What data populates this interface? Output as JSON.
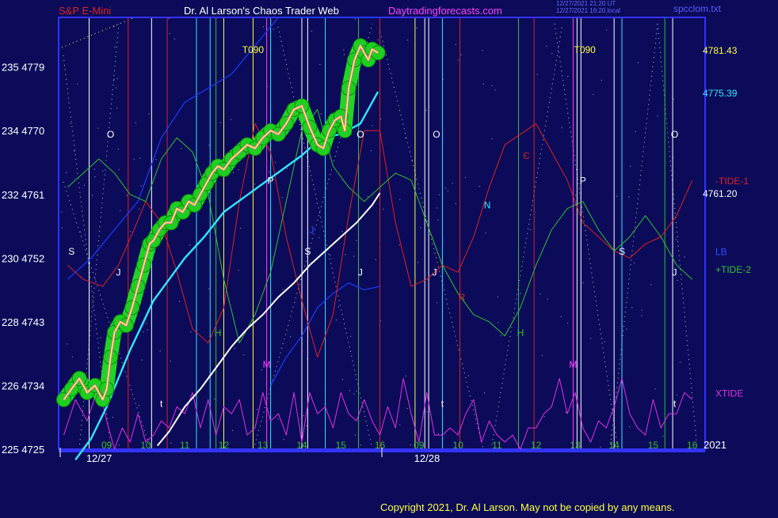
{
  "header": {
    "symbol": "S&P E-Mini",
    "title": "Dr. Al Larson's Chaos Trader Web",
    "site": "Daytradingforecasts.com",
    "stamp_line1": "12/27/2021 21:20 UT",
    "stamp_line2": "12/27/2021 16:20 local",
    "file": "spcclom.txt"
  },
  "copyright": "Copyright 2021, Dr. Al Larson. May not be copied by any means.",
  "colors": {
    "background": "#0b0b5a",
    "frame": "#3333ff",
    "price_glow": "#22e022",
    "price_line": "#ffff30",
    "price_bars": "#ff40ff",
    "cyan_avg": "#30e8ff",
    "white_avg": "#ffffff",
    "blue_line": "#1c3cff",
    "tide1": "#e02020",
    "tide2": "#30c030",
    "xtide": "#e030e0"
  },
  "chart_data": {
    "type": "line",
    "title": "S&P E-Mini",
    "x_unit": "hour",
    "ylim": [
      4725,
      4786
    ],
    "y_tick_labels": [
      {
        "value": 4779,
        "text": "235 4779"
      },
      {
        "value": 4770,
        "text": "234 4770"
      },
      {
        "value": 4761,
        "text": "232 4761"
      },
      {
        "value": 4752,
        "text": "230 4752"
      },
      {
        "value": 4743,
        "text": "228 4743"
      },
      {
        "value": 4734,
        "text": "226 4734"
      },
      {
        "value": 4725,
        "text": "225 4725"
      }
    ],
    "hour_labels": [
      {
        "hour": 9,
        "text": "09"
      },
      {
        "hour": 10,
        "text": "10"
      },
      {
        "hour": 11,
        "text": "11"
      },
      {
        "hour": 12,
        "text": "12"
      },
      {
        "hour": 13,
        "text": "13"
      },
      {
        "hour": 14,
        "text": "14"
      },
      {
        "hour": 15,
        "text": "15"
      },
      {
        "hour": 16,
        "text": "16"
      },
      {
        "hour": 17,
        "text": "09"
      },
      {
        "hour": 18,
        "text": "10"
      },
      {
        "hour": 19,
        "text": "11"
      },
      {
        "hour": 20,
        "text": "12"
      },
      {
        "hour": 21,
        "text": "13"
      },
      {
        "hour": 22,
        "text": "14"
      },
      {
        "hour": 23,
        "text": "15"
      },
      {
        "hour": 24,
        "text": "16"
      }
    ],
    "date_labels": [
      {
        "hour": 8.4,
        "text": "12/27"
      },
      {
        "hour": 16.8,
        "text": "12/28"
      }
    ],
    "year_label": "2021",
    "right_labels": [
      {
        "value": 4781.43,
        "text": "4781.43",
        "color": "#ffff40"
      },
      {
        "value": 4775.39,
        "text": "4775.39",
        "color": "#30e8ff"
      },
      {
        "value": 4761.2,
        "text": "4761.20",
        "color": "#ffffff"
      }
    ],
    "series_labels": [
      {
        "text": "-TIDE-1",
        "color": "#e02020",
        "value": 4763
      },
      {
        "text": "LB",
        "color": "#3050ff",
        "value": 4753
      },
      {
        "text": "+TIDE-2",
        "color": "#30c030",
        "value": 4750.5
      },
      {
        "text": "XTIDE",
        "color": "#e030e0",
        "value": 4733
      }
    ],
    "series": [
      {
        "role": "price",
        "color": "#ffff30",
        "x": [
          7.9,
          8.1,
          8.3,
          8.5,
          8.7,
          8.9,
          9.0,
          9.1,
          9.2,
          9.35,
          9.5,
          9.65,
          9.8,
          9.95,
          10.1,
          10.2,
          10.35,
          10.5,
          10.65,
          10.8,
          10.95,
          11.1,
          11.25,
          11.4,
          11.55,
          11.7,
          11.85,
          12.0,
          12.2,
          12.4,
          12.6,
          12.8,
          13.0,
          13.2,
          13.4,
          13.6,
          13.8,
          14.0,
          14.2,
          14.4,
          14.55,
          14.7,
          14.85,
          15.0,
          15.1,
          15.2,
          15.35,
          15.5,
          15.6,
          15.7,
          15.8,
          15.95
        ],
        "y": [
          4732,
          4733.5,
          4735,
          4733,
          4734,
          4732,
          4733.5,
          4738,
          4741.5,
          4743,
          4742.5,
          4745,
          4748,
          4751,
          4754,
          4754.5,
          4756,
          4757,
          4757,
          4759,
          4758.5,
          4760,
          4759.5,
          4761,
          4762.5,
          4764,
          4765,
          4764.5,
          4766,
          4767,
          4768,
          4767.5,
          4769,
          4770,
          4769.5,
          4771,
          4773,
          4773.5,
          4770.5,
          4768,
          4767.5,
          4770,
          4771.5,
          4772,
          4770,
          4776,
          4780,
          4782,
          4781,
          4780,
          4781.5,
          4781
        ]
      },
      {
        "role": "cyan-average",
        "color": "#30e8ff",
        "x": [
          8.2,
          8.6,
          9.0,
          9.3,
          9.6,
          9.9,
          10.2,
          10.6,
          11.0,
          11.5,
          12.0,
          12.5,
          13.0,
          13.5,
          14.0,
          14.5,
          15.0,
          15.5,
          15.95
        ],
        "y": [
          4723.5,
          4726.5,
          4731,
          4735,
          4739,
          4742.5,
          4746,
          4749,
          4752,
          4755,
          4758.5,
          4760.5,
          4762.5,
          4764.5,
          4766.5,
          4769,
          4769.5,
          4771,
          4775.5
        ]
      },
      {
        "role": "white-average",
        "color": "#ffffff",
        "x": [
          10.3,
          10.6,
          11.0,
          11.4,
          11.8,
          12.2,
          12.6,
          13.0,
          13.4,
          13.8,
          14.2,
          14.6,
          15.0,
          15.4,
          15.8,
          16.0
        ],
        "y": [
          4725.5,
          4727.5,
          4731,
          4733.5,
          4736.5,
          4739.5,
          4742,
          4744,
          4746.5,
          4748.5,
          4751,
          4753,
          4755,
          4757,
          4759.5,
          4761.2
        ]
      },
      {
        "role": "blue-line",
        "color": "#1c3cff",
        "x": [
          8.0,
          8.6,
          9.2,
          9.8,
          10.4,
          11.0,
          11.6,
          12.2,
          12.8,
          13.4,
          14.0,
          14.6,
          15.2,
          15.8,
          16.0
        ],
        "y": [
          4749,
          4752,
          4756,
          4760,
          4769,
          4774,
          4776,
          4778,
          4782,
          4786,
          4786,
          4786,
          4786,
          4786,
          4786
        ]
      },
      {
        "role": "blue-line-lower",
        "color": "#1c3cff",
        "x": [
          13.2,
          13.6,
          14.0,
          14.4,
          14.8,
          15.2,
          15.6,
          16.0
        ],
        "y": [
          4734,
          4738,
          4741,
          4745,
          4747,
          4748.5,
          4747.5,
          4748
        ]
      },
      {
        "role": "tide-1",
        "color": "#e02020",
        "x": [
          8.0,
          8.4,
          8.9,
          9.3,
          9.7,
          10.0,
          10.4,
          10.8,
          11.2,
          11.6,
          12.0,
          12.4,
          12.8,
          13.2,
          13.6,
          14.0,
          14.4,
          14.8,
          15.2,
          15.6,
          16.0,
          16.4,
          16.8,
          17.2,
          17.6,
          18.0,
          18.4,
          18.8,
          19.2,
          19.6,
          20.0,
          20.4,
          20.8,
          21.2,
          21.6,
          22.0,
          22.4,
          22.8,
          23.2,
          23.6,
          24.0
        ],
        "y": [
          4751,
          4749,
          4748,
          4751,
          4756,
          4760,
          4757,
          4750,
          4742,
          4740,
          4745,
          4760,
          4771,
          4767,
          4755,
          4746,
          4738,
          4744,
          4758,
          4770,
          4770,
          4757,
          4748,
          4749,
          4751,
          4750,
          4755,
          4762,
          4768,
          4769.5,
          4771,
          4767,
          4763,
          4757,
          4755,
          4753,
          4752,
          4754,
          4755,
          4758,
          4763
        ]
      },
      {
        "role": "tide-2",
        "color": "#30c030",
        "x": [
          8.0,
          8.4,
          8.8,
          9.2,
          9.6,
          10.0,
          10.4,
          10.8,
          11.2,
          11.6,
          12.0,
          12.4,
          12.8,
          13.2,
          13.6,
          14.0,
          14.4,
          14.8,
          15.2,
          15.6,
          16.0,
          16.4,
          16.8,
          17.2,
          17.6,
          18.0,
          18.4,
          18.8,
          19.2,
          19.6,
          20.0,
          20.4,
          20.8,
          21.2,
          21.6,
          22.0,
          22.4,
          22.8,
          23.2,
          23.6,
          24.0
        ],
        "y": [
          4762,
          4764,
          4766,
          4764,
          4761,
          4760,
          4766,
          4769,
          4767,
          4761,
          4749,
          4740,
          4744,
          4750,
          4760,
          4770,
          4773,
          4765,
          4762,
          4760,
          4762,
          4764,
          4763,
          4757,
          4751,
          4747,
          4744,
          4743,
          4741,
          4745,
          4751,
          4756,
          4759,
          4760,
          4756,
          4753,
          4755,
          4758,
          4755,
          4751,
          4749
        ]
      },
      {
        "role": "xtide",
        "color": "#e030e0",
        "x": [
          7.9,
          8.2,
          8.5,
          8.8,
          9.0,
          9.2,
          9.4,
          9.6,
          9.8,
          10.0,
          10.2,
          10.4,
          10.6,
          10.8,
          11.0,
          11.2,
          11.4,
          11.6,
          11.8,
          12.0,
          12.2,
          12.4,
          12.6,
          12.8,
          13.0,
          13.2,
          13.4,
          13.6,
          13.8,
          14.0,
          14.2,
          14.4,
          14.6,
          14.8,
          15.0,
          15.2,
          15.4,
          15.6,
          15.8,
          16.0,
          16.2,
          16.4,
          16.6,
          16.8,
          17.0,
          17.2,
          17.4,
          17.6,
          17.8,
          18.0,
          18.2,
          18.4,
          18.6,
          18.8,
          19.0,
          19.2,
          19.4,
          19.6,
          19.8,
          20.0,
          20.2,
          20.4,
          20.6,
          20.8,
          21.0,
          21.2,
          21.4,
          21.6,
          21.8,
          22.0,
          22.2,
          22.4,
          22.6,
          22.8,
          23.0,
          23.2,
          23.4,
          23.6,
          23.8,
          24.0
        ],
        "y": [
          4727,
          4732,
          4729,
          4734,
          4729,
          4725,
          4728,
          4726,
          4730,
          4726,
          4727,
          4729,
          4728,
          4731,
          4730,
          4733,
          4728,
          4732,
          4727,
          4731,
          4730,
          4732,
          4727,
          4728,
          4733,
          4729,
          4730,
          4727,
          4733,
          4726,
          4733,
          4730,
          4731,
          4728,
          4733,
          4730,
          4729,
          4732,
          4729,
          4727,
          4731,
          4728,
          4735,
          4730,
          4726,
          4733,
          4727,
          4727,
          4728,
          4727,
          4730,
          4732,
          4726,
          4729,
          4727,
          4726,
          4727,
          4725,
          4728,
          4728,
          4730,
          4731,
          4735,
          4730,
          4733,
          4728,
          4726,
          4729,
          4728,
          4731,
          4735,
          4730,
          4728,
          4727,
          4732,
          4728,
          4730,
          4730,
          4733,
          4732
        ]
      }
    ],
    "vertical_lines": [
      {
        "hour": 8.55,
        "color": "#ffffff"
      },
      {
        "hour": 9.55,
        "color": "#e02020"
      },
      {
        "hour": 10.15,
        "color": "#ffffff"
      },
      {
        "hour": 10.55,
        "color": "#e02020"
      },
      {
        "hour": 11.3,
        "color": "#30e8ff"
      },
      {
        "hour": 11.65,
        "color": "#30e8ff"
      },
      {
        "hour": 11.8,
        "color": "#30c030"
      },
      {
        "hour": 12.0,
        "color": "#ffff40"
      },
      {
        "hour": 12.75,
        "color": "#ffff40"
      },
      {
        "hour": 13.1,
        "color": "#ff40ff"
      },
      {
        "hour": 13.2,
        "color": "#30e8ff"
      },
      {
        "hour": 14.0,
        "color": "#ffffff"
      },
      {
        "hour": 14.15,
        "color": "#ffffff"
      },
      {
        "hour": 14.6,
        "color": "#30e8ff"
      },
      {
        "hour": 15.45,
        "color": "#30c030"
      },
      {
        "hour": 16.0,
        "color": "#e02020"
      },
      {
        "hour": 16.9,
        "color": "#ffff40"
      },
      {
        "hour": 17.15,
        "color": "#ffffff"
      },
      {
        "hour": 17.25,
        "color": "#ffffff"
      },
      {
        "hour": 17.6,
        "color": "#30e8ff"
      },
      {
        "hour": 18.05,
        "color": "#e02020"
      },
      {
        "hour": 19.55,
        "color": "#30c030"
      },
      {
        "hour": 19.95,
        "color": "#e02020"
      },
      {
        "hour": 20.95,
        "color": "#ff40ff"
      },
      {
        "hour": 21.05,
        "color": "#ffffff"
      },
      {
        "hour": 21.15,
        "color": "#ffffff"
      },
      {
        "hour": 22.0,
        "color": "#ffffff"
      },
      {
        "hour": 22.2,
        "color": "#30e8ff"
      },
      {
        "hour": 23.3,
        "color": "#30c030"
      },
      {
        "hour": 23.5,
        "color": "#ffffff"
      }
    ],
    "annotations": [
      {
        "text": "O",
        "hour": 9.1,
        "value": 4769,
        "color": "#ffffff"
      },
      {
        "text": "O",
        "hour": 15.5,
        "value": 4769,
        "color": "#ffffff"
      },
      {
        "text": "O",
        "hour": 17.45,
        "value": 4769,
        "color": "#ffffff"
      },
      {
        "text": "O",
        "hour": 23.55,
        "value": 4769,
        "color": "#ffffff"
      },
      {
        "text": "S",
        "hour": 8.1,
        "value": 4752.5,
        "color": "#ffffff"
      },
      {
        "text": "S",
        "hour": 14.15,
        "value": 4752.5,
        "color": "#ffffff"
      },
      {
        "text": "S",
        "hour": 22.2,
        "value": 4752.5,
        "color": "#ffffff"
      },
      {
        "text": "P",
        "hour": 13.2,
        "value": 4762.5,
        "color": "#ffffff"
      },
      {
        "text": "P",
        "hour": 21.2,
        "value": 4762.5,
        "color": "#ffffff"
      },
      {
        "text": "J",
        "hour": 9.3,
        "value": 4749.5,
        "color": "#ffffff"
      },
      {
        "text": "J",
        "hour": 15.5,
        "value": 4749.5,
        "color": "#ffffff"
      },
      {
        "text": "J",
        "hour": 17.4,
        "value": 4749.5,
        "color": "#ffffff"
      },
      {
        "text": "J",
        "hour": 23.55,
        "value": 4749.5,
        "color": "#ffffff"
      },
      {
        "text": "H",
        "hour": 11.85,
        "value": 4741,
        "color": "#30c030"
      },
      {
        "text": "H",
        "hour": 19.6,
        "value": 4741,
        "color": "#30c030"
      },
      {
        "text": "M",
        "hour": 13.1,
        "value": 4736.5,
        "color": "#ff40ff"
      },
      {
        "text": "M",
        "hour": 20.95,
        "value": 4736.5,
        "color": "#ff40ff"
      },
      {
        "text": "C",
        "hour": 19.75,
        "value": 4766,
        "color": "#e02020"
      },
      {
        "text": "R",
        "hour": 18.1,
        "value": 4746,
        "color": "#e02020"
      },
      {
        "text": "N",
        "hour": 18.75,
        "value": 4759,
        "color": "#30e8ff"
      },
      {
        "text": "J",
        "hour": 14.25,
        "value": 4755.5,
        "color": "#3050ff"
      },
      {
        "text": "t",
        "hour": 10.4,
        "value": 4731,
        "color": "#ffffff"
      },
      {
        "text": "t",
        "hour": 17.6,
        "value": 4731,
        "color": "#ffffff"
      },
      {
        "text": "t",
        "hour": 23.55,
        "value": 4731,
        "color": "#ffffff"
      },
      {
        "text": "T090",
        "hour": 12.75,
        "value": 4781,
        "color": "#ffff40"
      },
      {
        "text": "T090",
        "hour": 21.25,
        "value": 4781,
        "color": "#ffff40"
      }
    ]
  }
}
